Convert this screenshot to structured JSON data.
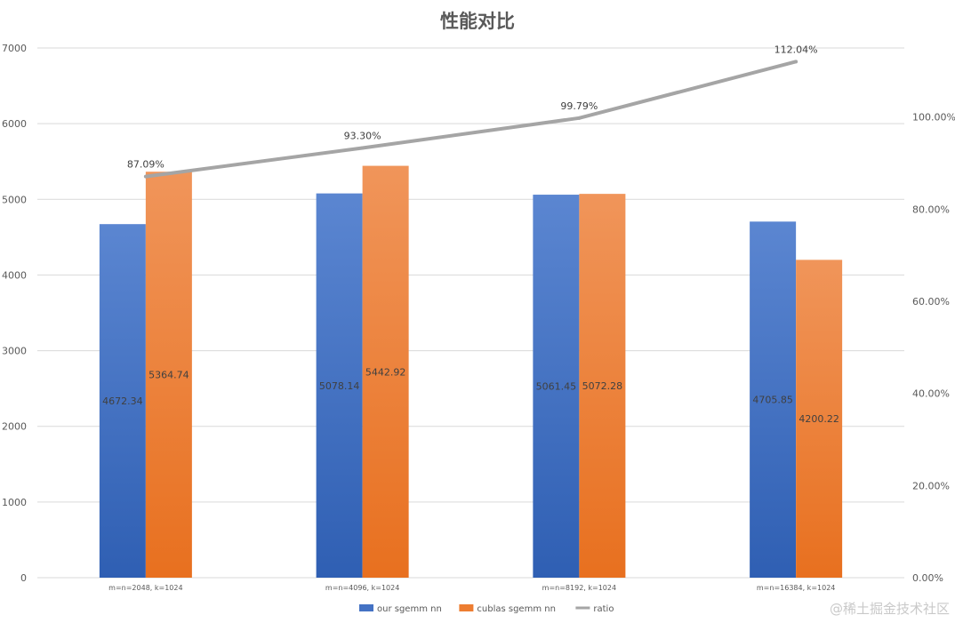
{
  "chart_data": {
    "type": "bar",
    "title": "性能对比",
    "categories": [
      "m=n=2048, k=1024",
      "m=n=4096, k=1024",
      "m=n=8192, k=1024",
      "m=n=16384, k=1024"
    ],
    "series": [
      {
        "name": "our sgemm nn",
        "type": "bar",
        "axis": "left",
        "color": "#4472c4",
        "values": [
          4672.34,
          5078.14,
          5061.45,
          4705.85
        ],
        "labels": [
          "4672.34",
          "5078.14",
          "5061.45",
          "4705.85"
        ]
      },
      {
        "name": "cublas sgemm nn",
        "type": "bar",
        "axis": "left",
        "color": "#ed7d31",
        "values": [
          5364.74,
          5442.92,
          5072.28,
          4200.22
        ],
        "labels": [
          "5364.74",
          "5442.92",
          "5072.28",
          "4200.22"
        ]
      },
      {
        "name": "ratio",
        "type": "line",
        "axis": "right",
        "color": "#a5a5a5",
        "values": [
          87.09,
          93.3,
          99.79,
          112.04
        ],
        "labels": [
          "87.09%",
          "93.30%",
          "99.79%",
          "112.04%"
        ]
      }
    ],
    "ylim": [
      0,
      7000
    ],
    "yticks": [
      "0",
      "1000",
      "2000",
      "3000",
      "4000",
      "5000",
      "6000",
      "7000"
    ],
    "y2lim": [
      0,
      115
    ],
    "y2ticks": [
      "0.00%",
      "20.00%",
      "40.00%",
      "60.00%",
      "80.00%",
      "100.00%"
    ],
    "grid": true,
    "legend": "bottom"
  },
  "watermark": "@稀土掘金技术社区"
}
